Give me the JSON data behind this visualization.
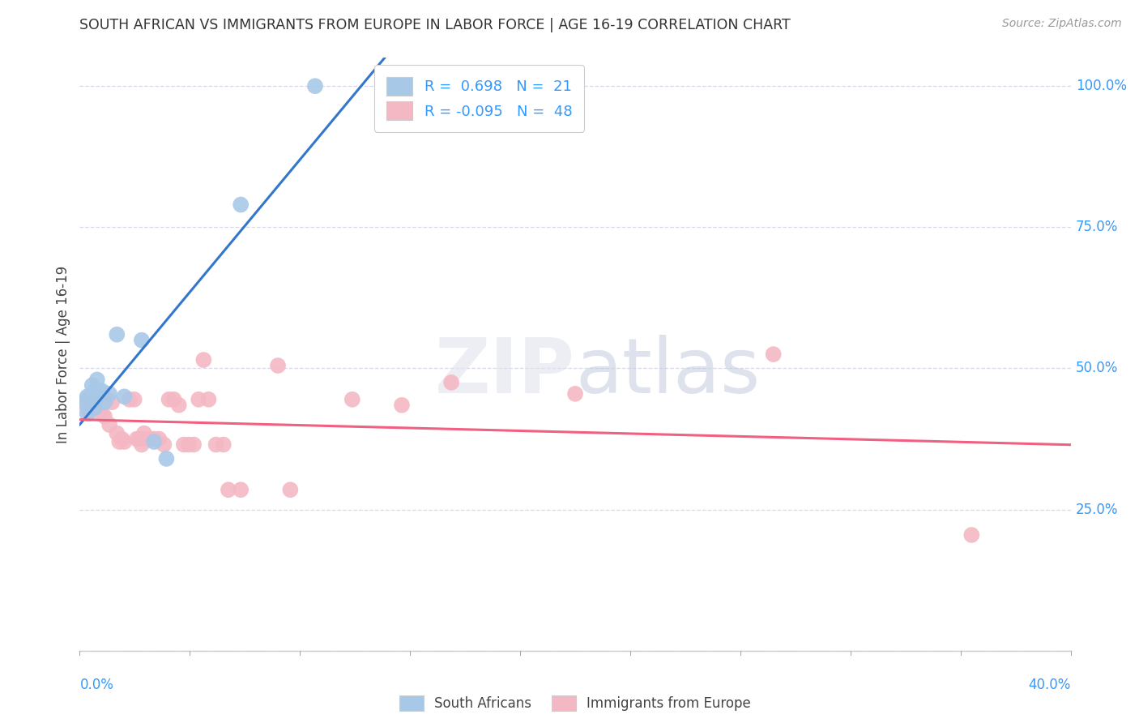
{
  "title": "SOUTH AFRICAN VS IMMIGRANTS FROM EUROPE IN LABOR FORCE | AGE 16-19 CORRELATION CHART",
  "source": "Source: ZipAtlas.com",
  "ylabel": "In Labor Force | Age 16-19",
  "legend_sa": {
    "R": "0.698",
    "N": "21"
  },
  "legend_eu": {
    "R": "-0.095",
    "N": "48"
  },
  "watermark": "ZIPatlas",
  "background_color": "#ffffff",
  "grid_color": "#d8d8e8",
  "sa_color": "#a8c8e8",
  "eu_color": "#f4b8c4",
  "sa_line_color": "#3377cc",
  "eu_line_color": "#f06080",
  "dashed_line_color": "#b0b8c8",
  "sa_scatter": [
    [
      0.002,
      0.44
    ],
    [
      0.003,
      0.42
    ],
    [
      0.003,
      0.45
    ],
    [
      0.004,
      0.45
    ],
    [
      0.005,
      0.47
    ],
    [
      0.005,
      0.44
    ],
    [
      0.006,
      0.43
    ],
    [
      0.006,
      0.46
    ],
    [
      0.007,
      0.48
    ],
    [
      0.007,
      0.45
    ],
    [
      0.008,
      0.46
    ],
    [
      0.009,
      0.46
    ],
    [
      0.01,
      0.44
    ],
    [
      0.012,
      0.455
    ],
    [
      0.015,
      0.56
    ],
    [
      0.018,
      0.45
    ],
    [
      0.025,
      0.55
    ],
    [
      0.03,
      0.37
    ],
    [
      0.035,
      0.34
    ],
    [
      0.065,
      0.79
    ],
    [
      0.095,
      1.0
    ]
  ],
  "eu_scatter": [
    [
      0.002,
      0.44
    ],
    [
      0.003,
      0.43
    ],
    [
      0.004,
      0.42
    ],
    [
      0.005,
      0.44
    ],
    [
      0.006,
      0.43
    ],
    [
      0.007,
      0.44
    ],
    [
      0.008,
      0.44
    ],
    [
      0.009,
      0.42
    ],
    [
      0.01,
      0.415
    ],
    [
      0.011,
      0.445
    ],
    [
      0.012,
      0.4
    ],
    [
      0.013,
      0.44
    ],
    [
      0.015,
      0.385
    ],
    [
      0.016,
      0.37
    ],
    [
      0.017,
      0.375
    ],
    [
      0.018,
      0.37
    ],
    [
      0.02,
      0.445
    ],
    [
      0.022,
      0.445
    ],
    [
      0.023,
      0.375
    ],
    [
      0.024,
      0.375
    ],
    [
      0.025,
      0.365
    ],
    [
      0.026,
      0.385
    ],
    [
      0.027,
      0.375
    ],
    [
      0.028,
      0.375
    ],
    [
      0.03,
      0.375
    ],
    [
      0.032,
      0.375
    ],
    [
      0.034,
      0.365
    ],
    [
      0.036,
      0.445
    ],
    [
      0.038,
      0.445
    ],
    [
      0.04,
      0.435
    ],
    [
      0.042,
      0.365
    ],
    [
      0.044,
      0.365
    ],
    [
      0.046,
      0.365
    ],
    [
      0.048,
      0.445
    ],
    [
      0.05,
      0.515
    ],
    [
      0.052,
      0.445
    ],
    [
      0.055,
      0.365
    ],
    [
      0.058,
      0.365
    ],
    [
      0.06,
      0.285
    ],
    [
      0.065,
      0.285
    ],
    [
      0.08,
      0.505
    ],
    [
      0.085,
      0.285
    ],
    [
      0.11,
      0.445
    ],
    [
      0.13,
      0.435
    ],
    [
      0.15,
      0.475
    ],
    [
      0.2,
      0.455
    ],
    [
      0.28,
      0.525
    ],
    [
      0.36,
      0.205
    ]
  ],
  "xlim": [
    0.0,
    0.4
  ],
  "ylim": [
    0.0,
    1.05
  ],
  "ytick_positions": [
    0.0,
    0.25,
    0.5,
    0.75,
    1.0
  ],
  "ytick_labels": [
    "",
    "25.0%",
    "50.0%",
    "75.0%",
    "100.0%"
  ],
  "xtick_count": 9
}
